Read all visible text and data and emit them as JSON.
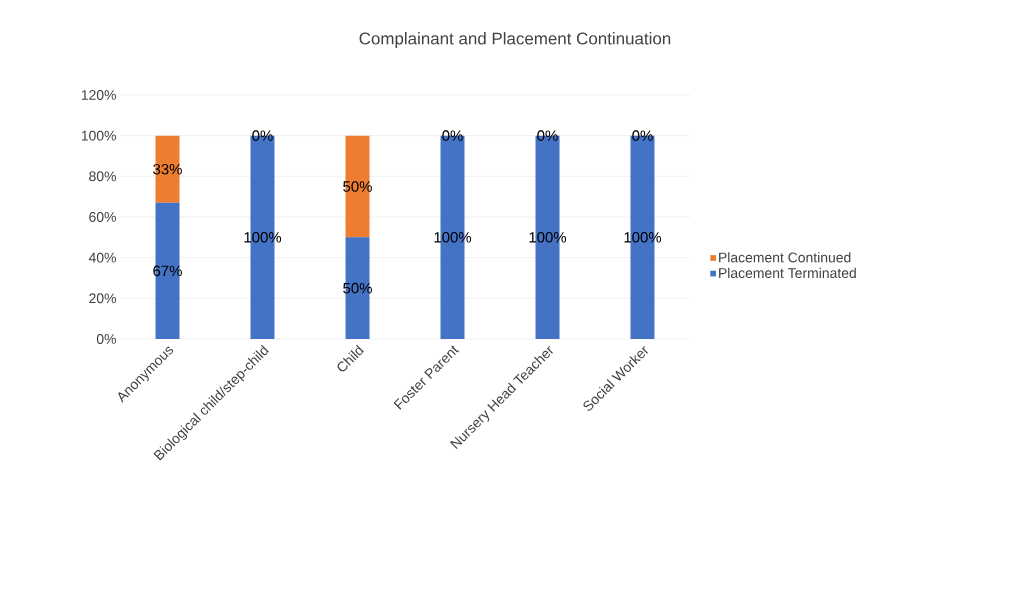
{
  "chart_data": {
    "type": "bar",
    "stacked": true,
    "title": "Complainant and Placement Continuation",
    "categories": [
      "Anonymous",
      "Biological child/step-child",
      "Child",
      "Foster Parent",
      "Nursery Head Teacher",
      "Social Worker"
    ],
    "series": [
      {
        "name": "Placement Terminated",
        "color": "#4472c4",
        "values": [
          67,
          100,
          50,
          100,
          100,
          100
        ],
        "value_labels": [
          "67%",
          "100%",
          "50%",
          "100%",
          "100%",
          "100%"
        ]
      },
      {
        "name": "Placement Continued",
        "color": "#ed7d31",
        "values": [
          33,
          0,
          50,
          0,
          0,
          0
        ],
        "value_labels": [
          "33%",
          "0%",
          "50%",
          "0%",
          "0%",
          "0%"
        ]
      }
    ],
    "ylim": [
      0,
      120
    ],
    "yticks": [
      {
        "value": 0,
        "label": "0%"
      },
      {
        "value": 20,
        "label": "20%"
      },
      {
        "value": 40,
        "label": "40%"
      },
      {
        "value": 60,
        "label": "60%"
      },
      {
        "value": 80,
        "label": "80%"
      },
      {
        "value": 100,
        "label": "100%"
      },
      {
        "value": 120,
        "label": "120%"
      }
    ],
    "grid": "y",
    "legend": "right"
  }
}
